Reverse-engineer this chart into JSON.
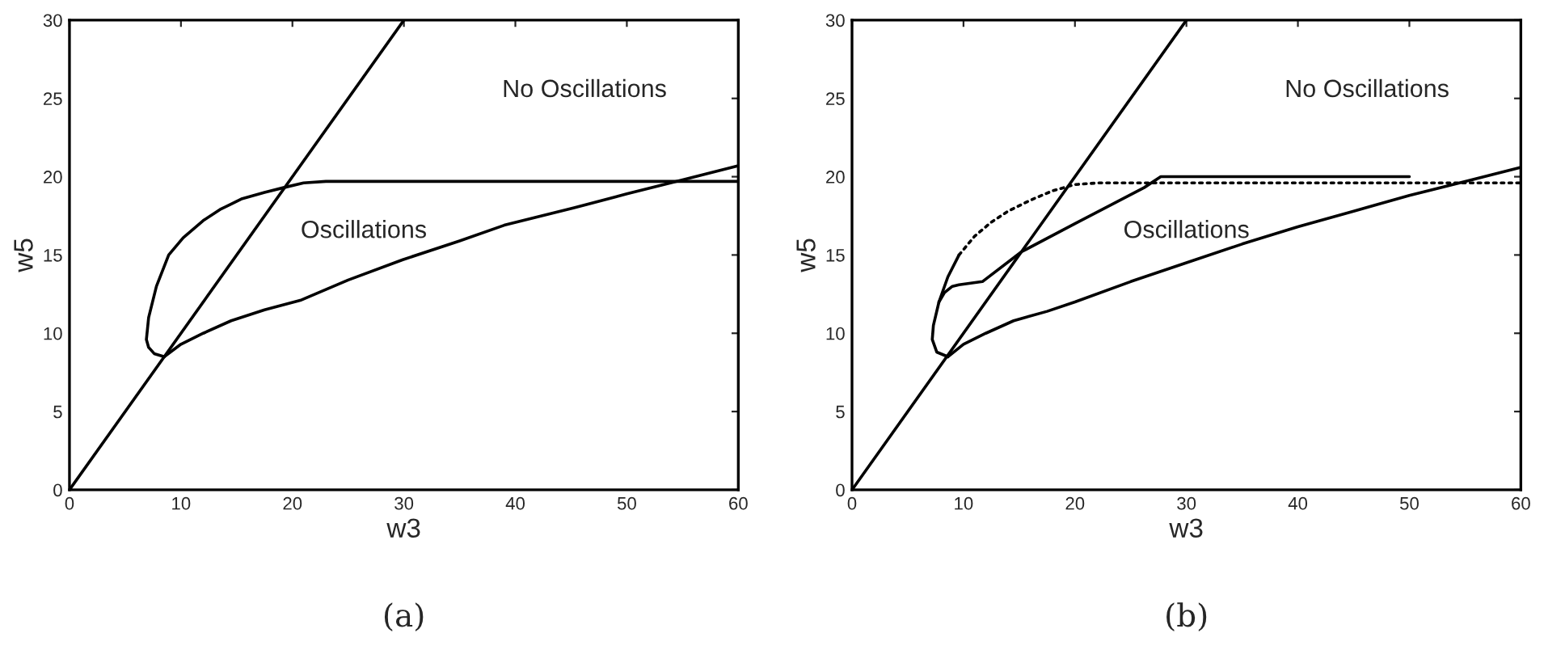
{
  "chart_data": [
    {
      "type": "line",
      "xlabel": "w3",
      "ylabel": "w5",
      "xlim": [
        0,
        60
      ],
      "ylim": [
        0,
        30
      ],
      "xticks": [
        0,
        10,
        20,
        30,
        40,
        50,
        60
      ],
      "yticks": [
        0,
        5,
        10,
        15,
        20,
        25,
        30
      ],
      "marker": "none",
      "series": [
        {
          "color": "#000000",
          "line_style": "solid",
          "x": [
            0,
            30
          ],
          "values": [
            0,
            30
          ]
        },
        {
          "color": "#000000",
          "line_style": "solid",
          "x": [
            8.5,
            7.6,
            7.1,
            6.9,
            7.1,
            7.8,
            8.9,
            10.2,
            12,
            13.5,
            15.5,
            17.5,
            19.2,
            21,
            23,
            30,
            40,
            50,
            60
          ],
          "values": [
            8.5,
            8.7,
            9.1,
            9.6,
            11,
            13,
            15,
            16.1,
            17.2,
            17.9,
            18.6,
            19,
            19.3,
            19.6,
            19.7,
            19.7,
            19.7,
            19.7,
            19.7
          ]
        },
        {
          "color": "#000000",
          "line_style": "solid",
          "x": [
            8.5,
            10,
            12,
            14.5,
            17.5,
            20.7,
            25,
            29.9,
            35,
            39,
            45.2,
            50,
            55,
            60
          ],
          "values": [
            8.5,
            9.3,
            10,
            10.8,
            11.5,
            12.1,
            13.4,
            14.7,
            15.9,
            16.9,
            18,
            18.9,
            19.8,
            20.7
          ]
        }
      ],
      "annotations": [
        "No Oscillations",
        "Oscillations",
        "(a)"
      ]
    },
    {
      "type": "line",
      "xlabel": "w3",
      "ylabel": "w5",
      "xlim": [
        0,
        60
      ],
      "ylim": [
        0,
        30
      ],
      "xticks": [
        0,
        10,
        20,
        30,
        40,
        50,
        60
      ],
      "yticks": [
        0,
        5,
        10,
        15,
        20,
        25,
        30
      ],
      "marker": "none",
      "series": [
        {
          "color": "#000000",
          "line_style": "solid",
          "x": [
            0,
            30
          ],
          "values": [
            0,
            30
          ]
        },
        {
          "color": "#000000",
          "line_style": "solid",
          "x": [
            8.6,
            7.6,
            7.2,
            7.3,
            7.8,
            8.6,
            9.6
          ],
          "values": [
            8.5,
            8.8,
            9.6,
            10.5,
            12,
            13.6,
            15
          ]
        },
        {
          "color": "#000000",
          "line_style": "dotted",
          "x": [
            9.6,
            11,
            12.5,
            14,
            16,
            18,
            20,
            22,
            30,
            40,
            50,
            60
          ],
          "values": [
            15,
            16.2,
            17.1,
            17.8,
            18.5,
            19.1,
            19.5,
            19.6,
            19.6,
            19.6,
            19.6,
            19.6
          ]
        },
        {
          "color": "#000000",
          "line_style": "solid",
          "x": [
            7.8,
            8.3,
            9,
            9.6,
            11.7,
            15.2,
            20,
            26.2,
            27.7,
            35,
            50
          ],
          "values": [
            12,
            12.6,
            13,
            13.1,
            13.3,
            15.2,
            17,
            19.3,
            20,
            20,
            20
          ]
        },
        {
          "color": "#000000",
          "line_style": "solid",
          "x": [
            8.6,
            10,
            12,
            14.5,
            17.5,
            20,
            25,
            30,
            35,
            40,
            45,
            50,
            55,
            60
          ],
          "values": [
            8.5,
            9.3,
            10,
            10.8,
            11.4,
            12,
            13.3,
            14.5,
            15.7,
            16.8,
            17.8,
            18.8,
            19.7,
            20.6
          ]
        }
      ],
      "annotations": [
        "No Oscillations",
        "Oscillations",
        "(b)"
      ]
    }
  ]
}
